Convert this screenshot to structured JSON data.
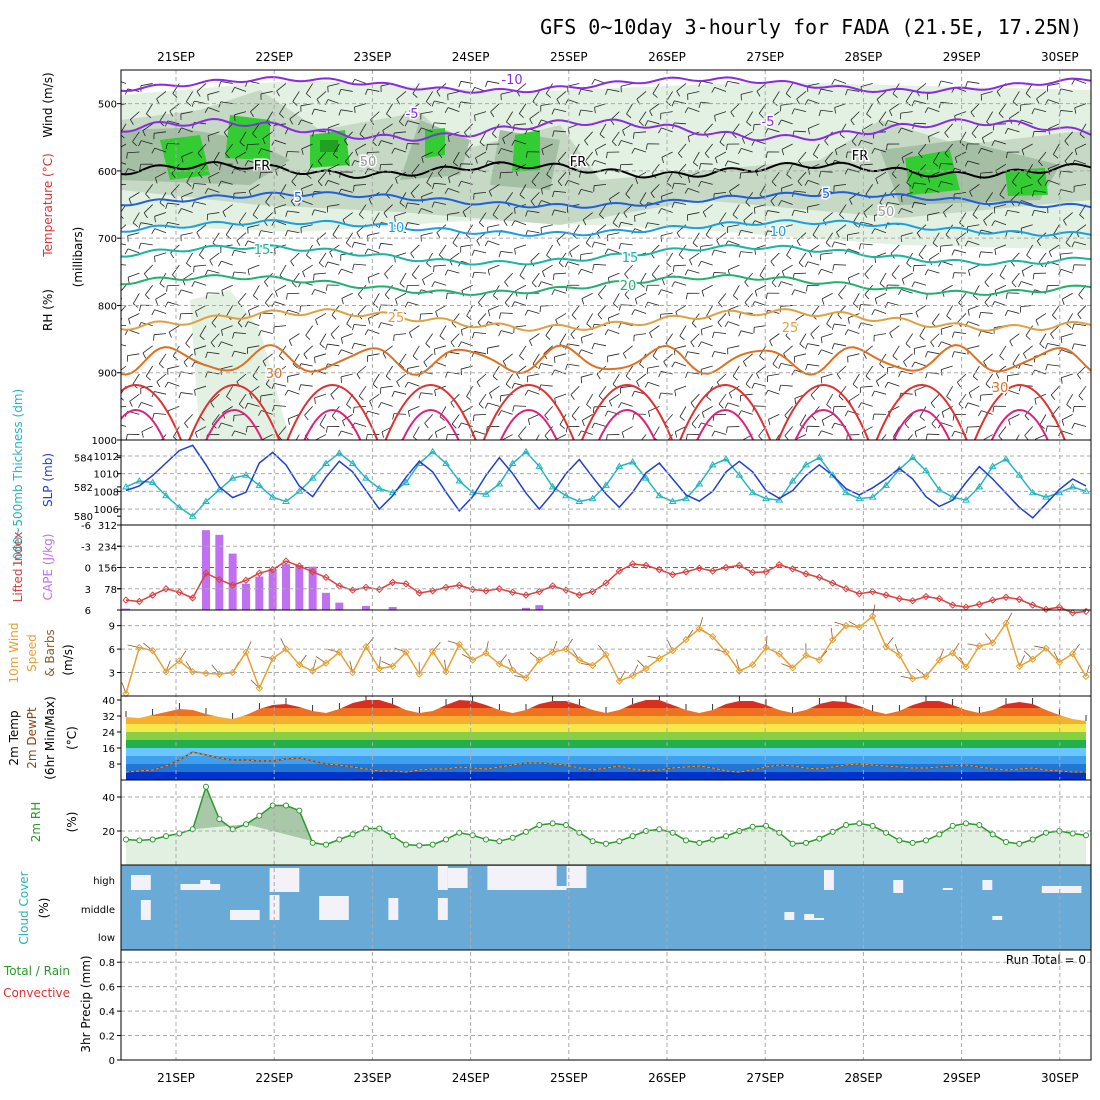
{
  "title": "GFS 0~10day 3-hourly for FADA (21.5E, 17.25N)",
  "dates": [
    "21SEP",
    "22SEP",
    "23SEP",
    "24SEP",
    "25SEP",
    "26SEP",
    "27SEP",
    "28SEP",
    "29SEP",
    "30SEP"
  ],
  "colors": {
    "rh_green": "#33cc33",
    "temp_red": "#e03030",
    "slp_blue": "#1f3fd0",
    "thick_cyan": "#22b5c0",
    "cape_violet": "#c070f0",
    "li_red": "#d94040",
    "wind_orange": "#e8a030",
    "rh2m_green": "#2a9a2a",
    "cloud_blue": "#6aaad6"
  },
  "panels": {
    "upper": {
      "y_label": "(millibars)",
      "ticks": [
        "500",
        "600",
        "700",
        "800",
        "900",
        "1000"
      ],
      "left_labels": {
        "wind": "Wind (m/s)",
        "temp": "Temperature (°C)",
        "rh": "RH (%)"
      },
      "contour_labels": [
        "-10",
        "-5",
        "-5",
        "FR",
        "FR",
        "FR",
        "5",
        "5",
        "10",
        "10",
        "15",
        "15",
        "20",
        "25",
        "25",
        "30",
        "30",
        "50",
        "50"
      ]
    },
    "slp": {
      "left_labels": {
        "thick": "1000~500mb Thickness (dm)",
        "slp": "SLP (mb)"
      },
      "ticks_left": [
        "584",
        "582",
        "580"
      ],
      "ticks_right": [
        "1012",
        "1010",
        "1008",
        "1006"
      ]
    },
    "cape": {
      "left_labels": {
        "li": "Lifted Index",
        "cape": "CAPE (J/kg)"
      },
      "ticks_left": [
        "-6",
        "-3",
        "0",
        "3",
        "6"
      ],
      "ticks_right": [
        "312",
        "234",
        "156",
        "78"
      ]
    },
    "wind": {
      "left_labels": {
        "a": "10m Wind",
        "b": "Speed",
        "c": "& Barbs",
        "unit": "(m/s)"
      },
      "ticks": [
        "9",
        "6",
        "3"
      ]
    },
    "temp": {
      "left_labels": {
        "a": "2m Temp",
        "b": "2m DewPt",
        "c": "(6hr Min/Max)",
        "unit": "(°C)"
      },
      "ticks": [
        "40",
        "32",
        "24",
        "16",
        "8"
      ]
    },
    "rh": {
      "left_labels": {
        "a": "2m RH",
        "unit": "(%)"
      },
      "ticks": [
        "40",
        "20"
      ]
    },
    "cloud": {
      "left_labels": {
        "a": "Cloud Cover",
        "unit": "(%)"
      },
      "levels": [
        "high",
        "middle",
        "low"
      ]
    },
    "precip": {
      "left_labels": {
        "a": "Total / Rain",
        "b": "Convective",
        "c": "3hr Precip (mm)"
      },
      "ticks": [
        "0.8",
        "0.6",
        "0.4",
        "0.2",
        "0"
      ],
      "run_total": "Run Total = 0"
    }
  },
  "chart_data": [
    {
      "type": "line",
      "title": "SLP (mb) / 1000~500mb Thickness (dm)",
      "series": [
        {
          "name": "SLP (mb)",
          "values": [
            1008.1,
            1008.6,
            1009.8,
            1011.2,
            1012.6,
            1013.2,
            1011.0,
            1008.5,
            1007.3,
            1007.9,
            1011.2,
            1012.4,
            1011.0,
            1008.6,
            1007.4,
            1009.6,
            1011.4,
            1010.2,
            1008.1,
            1006.0,
            1007.5,
            1009.6,
            1011.4,
            1010.2,
            1007.9,
            1005.8,
            1007.4,
            1009.8,
            1011.8,
            1010.0,
            1007.8,
            1006.0,
            1007.8,
            1010.0,
            1011.6,
            1009.6,
            1007.7,
            1006.2,
            1007.9,
            1010.1,
            1011.2,
            1009.4,
            1007.6,
            1006.9,
            1008.0,
            1010.2,
            1011.4,
            1010.2,
            1008.1,
            1007.2,
            1008.1,
            1009.8,
            1011.0,
            1009.8,
            1008.3,
            1007.6,
            1008.4,
            1009.4,
            1010.6,
            1009.4,
            1007.4,
            1006.3,
            1007.0,
            1009.0,
            1010.8,
            1009.4,
            1007.8,
            1006.2,
            1005.0,
            1006.6,
            1008.2,
            1009.4,
            1008.6
          ]
        },
        {
          "name": "1000~500mb Thickness (dm)",
          "values": [
            582.0,
            582.4,
            582.3,
            581.4,
            580.6,
            580.0,
            581.0,
            581.8,
            582.6,
            582.8,
            582.1,
            581.3,
            581.0,
            581.7,
            582.6,
            583.6,
            584.3,
            583.6,
            582.6,
            581.9,
            581.6,
            582.3,
            583.6,
            584.4,
            583.6,
            582.4,
            581.6,
            581.5,
            582.2,
            583.6,
            584.4,
            583.4,
            582.0,
            581.4,
            581.0,
            581.2,
            582.1,
            583.4,
            583.7,
            582.6,
            581.4,
            581.0,
            581.2,
            582.2,
            583.5,
            583.9,
            582.8,
            581.6,
            581.2,
            581.1,
            582.4,
            583.5,
            584.0,
            582.8,
            581.6,
            581.2,
            581.3,
            582.1,
            583.2,
            584.0,
            583.1,
            581.8,
            581.3,
            581.1,
            582.0,
            583.4,
            583.9,
            582.8,
            581.6,
            581.3,
            581.6,
            582.0,
            581.7
          ]
        }
      ]
    },
    {
      "type": "bar",
      "title": "CAPE (J/kg) / Lifted Index",
      "series": [
        {
          "name": "CAPE (J/kg)",
          "values": [
            5,
            0,
            0,
            0,
            0,
            0,
            293,
            276,
            207,
            96,
            123,
            152,
            168,
            165,
            159,
            63,
            27,
            0,
            15,
            0,
            11,
            0,
            0,
            0,
            0,
            0,
            0,
            0,
            0,
            0,
            8,
            18,
            0,
            0,
            0,
            0,
            0,
            0,
            0,
            0,
            0,
            0,
            0,
            0,
            0,
            0,
            0,
            0,
            0,
            0,
            0,
            0,
            0,
            0,
            0,
            0,
            0,
            0,
            0,
            0,
            0,
            0,
            0,
            0,
            0,
            0,
            0,
            0,
            0,
            0,
            0,
            0,
            0
          ]
        },
        {
          "name": "Lifted Index",
          "values": [
            4.6,
            4.8,
            3.9,
            3.0,
            3.5,
            4.3,
            0.8,
            1.7,
            2.5,
            1.8,
            0.8,
            0.3,
            -0.9,
            -0.2,
            0.6,
            1.4,
            2.6,
            3.2,
            2.8,
            3.1,
            2.1,
            2.3,
            3.6,
            3.3,
            2.8,
            2.5,
            3.1,
            3.3,
            3.0,
            3.5,
            3.9,
            3.4,
            2.6,
            3.2,
            3.9,
            3.4,
            2.2,
            0.5,
            -0.5,
            -0.3,
            0.3,
            1.0,
            0.6,
            0.1,
            0.5,
            0.0,
            -0.3,
            0.7,
            0.6,
            -0.4,
            0.2,
            0.9,
            1.4,
            2.2,
            3.0,
            3.7,
            3.4,
            3.9,
            4.4,
            4.7,
            4.1,
            4.4,
            5.3,
            5.6,
            5.2,
            4.6,
            4.2,
            4.5,
            5.3,
            5.9,
            5.6,
            6.4,
            6.2
          ]
        }
      ]
    },
    {
      "type": "line",
      "title": "10m Wind Speed (m/s)",
      "series": [
        {
          "name": "10m Wind Speed",
          "values": [
            0.3,
            6.2,
            5.8,
            3.1,
            4.5,
            3.1,
            2.9,
            2.8,
            3.0,
            5.6,
            1.0,
            4.8,
            6.0,
            4.0,
            3.2,
            4.2,
            5.6,
            3.0,
            6.3,
            3.5,
            3.8,
            5.6,
            2.8,
            5.7,
            3.1,
            6.6,
            4.6,
            5.5,
            4.1,
            3.3,
            2.3,
            4.6,
            5.6,
            6.0,
            4.6,
            3.9,
            5.3,
            1.9,
            2.6,
            3.5,
            4.8,
            5.8,
            7.2,
            8.6,
            7.6,
            5.6,
            3.2,
            4.0,
            6.2,
            5.4,
            3.6,
            5.2,
            4.6,
            7.2,
            9.0,
            8.8,
            10.2,
            6.3,
            5.2,
            2.2,
            2.5,
            4.6,
            5.5,
            3.7,
            6.4,
            6.8,
            9.3,
            3.8,
            4.7,
            6.1,
            4.3,
            5.4,
            2.5
          ]
        }
      ]
    },
    {
      "type": "area",
      "title": "2m Temp / 2m DewPt (°C)",
      "series": [
        {
          "name": "2m Temp",
          "values": [
            31.5,
            31.0,
            32.5,
            34.0,
            35.5,
            35.0,
            33.0,
            31.5,
            30.5,
            32.5,
            35.5,
            37.5,
            38.0,
            36.5,
            34.5,
            33.5,
            35.5,
            38.5,
            40.0,
            40.0,
            38.0,
            35.0,
            33.5,
            34.5,
            37.5,
            40.0,
            39.5,
            37.5,
            35.0,
            33.5,
            35.0,
            38.0,
            39.5,
            39.5,
            37.5,
            35.0,
            33.5,
            35.0,
            38.0,
            40.0,
            40.0,
            37.5,
            35.0,
            33.5,
            35.0,
            38.0,
            39.5,
            39.5,
            37.5,
            35.0,
            33.5,
            35.0,
            38.0,
            39.5,
            39.0,
            37.0,
            34.5,
            33.0,
            34.5,
            37.5,
            39.5,
            39.5,
            37.5,
            35.0,
            33.5,
            35.0,
            38.0,
            39.0,
            38.0,
            35.0,
            32.5,
            30.5,
            29.5
          ]
        },
        {
          "name": "2m DewPt",
          "values": [
            4.0,
            4.5,
            5.0,
            7.0,
            10.0,
            14.0,
            12.5,
            11.0,
            10.0,
            10.0,
            9.5,
            9.5,
            10.5,
            11.0,
            9.5,
            8.0,
            7.5,
            6.5,
            5.5,
            4.5,
            4.5,
            4.0,
            5.0,
            5.5,
            5.5,
            6.5,
            6.0,
            5.5,
            6.5,
            7.5,
            8.5,
            8.5,
            8.0,
            7.5,
            6.0,
            5.0,
            6.0,
            7.0,
            5.5,
            4.5,
            5.0,
            6.0,
            6.5,
            7.0,
            6.0,
            4.5,
            4.0,
            5.0,
            6.5,
            7.5,
            7.0,
            6.0,
            5.5,
            6.5,
            7.5,
            8.0,
            7.5,
            7.0,
            6.5,
            6.0,
            6.0,
            6.5,
            7.0,
            7.5,
            6.5,
            5.5,
            5.0,
            5.5,
            6.0,
            5.0,
            4.5,
            4.0,
            4.0
          ]
        }
      ]
    },
    {
      "type": "area",
      "title": "2m RH (%)",
      "series": [
        {
          "name": "2m RH",
          "values": [
            15.0,
            14.5,
            15.0,
            17.0,
            18.5,
            21.0,
            46.0,
            27.0,
            21.0,
            24.0,
            29.0,
            35.0,
            35.0,
            32.0,
            13.0,
            12.0,
            15.0,
            18.0,
            21.5,
            21.5,
            17.0,
            12.0,
            11.5,
            12.0,
            15.0,
            19.0,
            17.5,
            15.0,
            14.0,
            16.0,
            19.5,
            23.5,
            24.5,
            23.5,
            19.0,
            14.0,
            12.5,
            14.0,
            17.0,
            20.0,
            21.0,
            19.0,
            14.5,
            13.0,
            15.0,
            17.0,
            20.0,
            22.5,
            23.0,
            19.0,
            12.5,
            13.0,
            15.5,
            19.5,
            23.5,
            24.5,
            23.0,
            19.0,
            14.5,
            13.0,
            14.5,
            18.0,
            23.0,
            24.5,
            23.5,
            18.0,
            13.5,
            12.5,
            15.0,
            19.0,
            20.0,
            18.5,
            17.5
          ]
        }
      ]
    },
    {
      "type": "bar",
      "title": "3hr Precip (mm)",
      "ylim": [
        0,
        0.9
      ],
      "series": [
        {
          "name": "Total / Rain",
          "values": [
            0,
            0,
            0,
            0,
            0,
            0,
            0,
            0,
            0,
            0,
            0,
            0,
            0,
            0,
            0,
            0,
            0,
            0,
            0,
            0,
            0,
            0,
            0,
            0,
            0,
            0,
            0,
            0,
            0,
            0,
            0,
            0,
            0,
            0,
            0,
            0,
            0,
            0,
            0,
            0,
            0,
            0,
            0,
            0,
            0,
            0,
            0,
            0,
            0,
            0,
            0,
            0,
            0,
            0,
            0,
            0,
            0,
            0,
            0,
            0,
            0,
            0,
            0,
            0,
            0,
            0,
            0,
            0,
            0,
            0,
            0,
            0,
            0
          ]
        }
      ]
    }
  ]
}
